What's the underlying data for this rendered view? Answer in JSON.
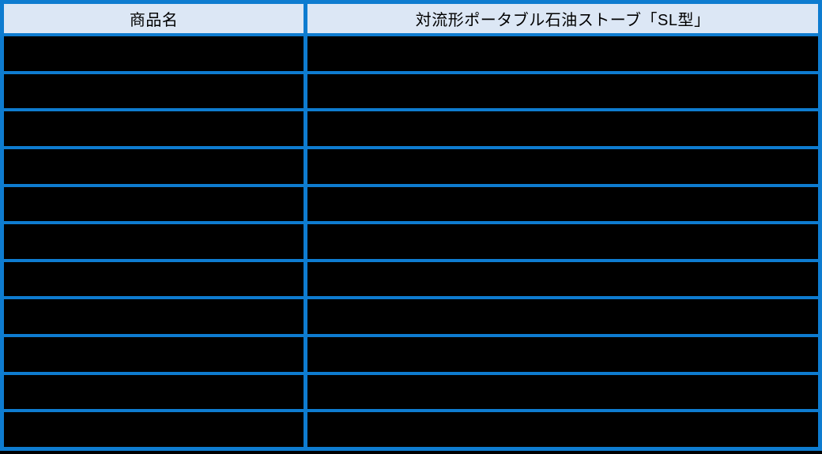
{
  "table": {
    "header": {
      "col1": "商品名",
      "col2": "対流形ポータブル石油ストーブ「SL型」"
    },
    "body_rows": [
      {
        "col1": "",
        "col2": ""
      },
      {
        "col1": "",
        "col2": ""
      },
      {
        "col1": "",
        "col2": ""
      },
      {
        "col1": "",
        "col2": ""
      },
      {
        "col1": "",
        "col2": ""
      },
      {
        "col1": "",
        "col2": ""
      },
      {
        "col1": "",
        "col2": ""
      },
      {
        "col1": "",
        "col2": ""
      },
      {
        "col1": "",
        "col2": ""
      },
      {
        "col1": "",
        "col2": ""
      },
      {
        "col1": "",
        "col2": ""
      }
    ],
    "colors": {
      "border_blue": "#0e7cd0",
      "header_background": "#dce7f5",
      "header_text": "#000000",
      "row_background": "#000000",
      "page_background": "#000000"
    }
  }
}
